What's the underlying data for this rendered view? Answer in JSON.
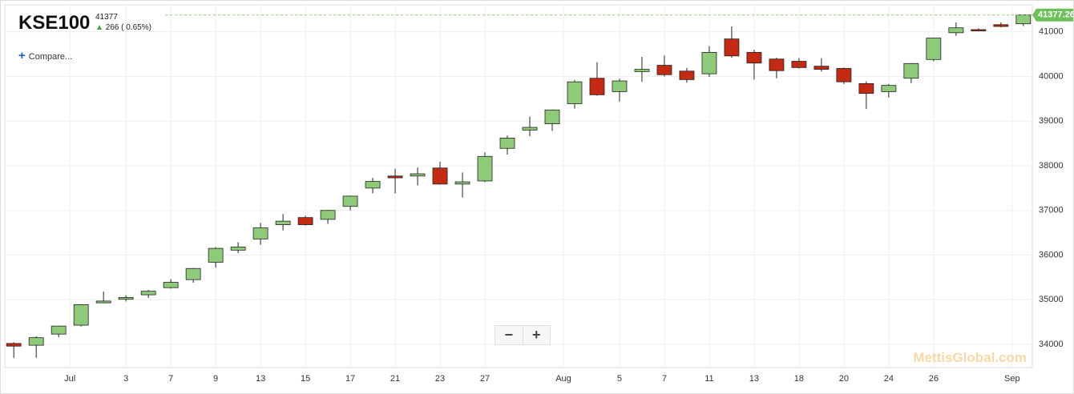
{
  "header": {
    "title": "KSE100",
    "last": "41377",
    "change": "266",
    "change_label": "( 0.65%)",
    "compare": "Compare...",
    "watermark": "MettisGlobal.com",
    "zoom_out": "−",
    "zoom_in": "+"
  },
  "chart_data": {
    "type": "candlestick",
    "up_color": "#8fc97a",
    "down_color": "#c22a14",
    "open": [
      34020,
      33980,
      34230,
      34430,
      34930,
      35010,
      35110,
      35270,
      35450,
      35840,
      36110,
      36360,
      36680,
      36840,
      36800,
      37090,
      37500,
      37770,
      37770,
      37950,
      37590,
      37660,
      38390,
      38800,
      38940,
      39390,
      39960,
      39660,
      40110,
      40250,
      40120,
      40060,
      40840,
      40540,
      40390,
      40340,
      40230,
      40180,
      39840,
      39660,
      39960,
      40380,
      40980,
      41050,
      41160,
      41180
    ],
    "high": [
      34050,
      34180,
      34420,
      34900,
      35180,
      35100,
      35220,
      35460,
      35710,
      36180,
      36290,
      36720,
      36920,
      36880,
      37010,
      37330,
      37730,
      37930,
      37960,
      38090,
      37850,
      38300,
      38680,
      39100,
      39260,
      39920,
      40320,
      39950,
      40440,
      40470,
      40190,
      40680,
      41120,
      40600,
      40420,
      40410,
      40410,
      40200,
      39890,
      39830,
      40300,
      40870,
      41210,
      41080,
      41210,
      41380
    ],
    "low": [
      33700,
      33700,
      34160,
      34400,
      34920,
      34960,
      35040,
      35250,
      35380,
      35720,
      36040,
      36230,
      36550,
      36660,
      36700,
      37000,
      37380,
      37380,
      37560,
      37580,
      37290,
      37630,
      38250,
      38660,
      38780,
      39280,
      39570,
      39440,
      39880,
      40000,
      39860,
      39990,
      40420,
      39930,
      39960,
      40180,
      40110,
      39830,
      39270,
      39530,
      39850,
      40340,
      40910,
      41010,
      41100,
      41130
    ],
    "close": [
      33960,
      34150,
      34410,
      34890,
      34970,
      35050,
      35190,
      35390,
      35700,
      36150,
      36180,
      36610,
      36760,
      36680,
      37000,
      37320,
      37650,
      37730,
      37820,
      37590,
      37640,
      38210,
      38620,
      38860,
      39250,
      39880,
      39590,
      39900,
      40160,
      40040,
      39930,
      40540,
      40460,
      40300,
      40130,
      40200,
      40160,
      39880,
      39620,
      39800,
      40290,
      40860,
      41090,
      41020,
      41120,
      41377.26
    ],
    "last_value": 41377.26,
    "ylim": [
      33480,
      41605
    ],
    "yticks": [
      34000,
      35000,
      36000,
      37000,
      38000,
      39000,
      40000,
      41000
    ],
    "xlim": [
      -0.4,
      45.4
    ],
    "xticks": [
      {
        "value": 2.5,
        "label": "Jul"
      },
      {
        "value": 5,
        "label": "3"
      },
      {
        "value": 7,
        "label": "7"
      },
      {
        "value": 9,
        "label": "9"
      },
      {
        "value": 11,
        "label": "13"
      },
      {
        "value": 13,
        "label": "15"
      },
      {
        "value": 15,
        "label": "17"
      },
      {
        "value": 17,
        "label": "21"
      },
      {
        "value": 19,
        "label": "23"
      },
      {
        "value": 21,
        "label": "27"
      },
      {
        "value": 24.5,
        "label": "Aug"
      },
      {
        "value": 27,
        "label": "5"
      },
      {
        "value": 29,
        "label": "7"
      },
      {
        "value": 31,
        "label": "11"
      },
      {
        "value": 33,
        "label": "13"
      },
      {
        "value": 35,
        "label": "18"
      },
      {
        "value": 37,
        "label": "20"
      },
      {
        "value": 39,
        "label": "24"
      },
      {
        "value": 41,
        "label": "26"
      },
      {
        "value": 44.5,
        "label": "Sep"
      }
    ],
    "grid": true
  }
}
